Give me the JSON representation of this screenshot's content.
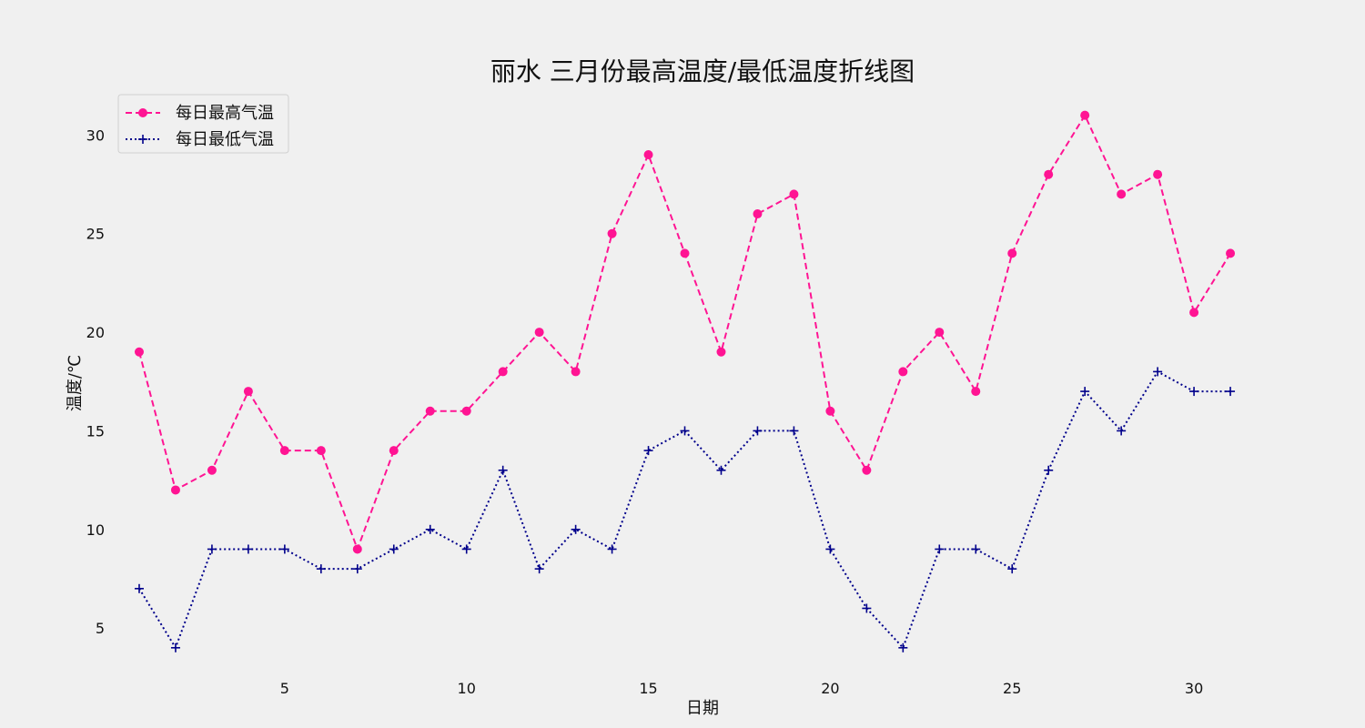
{
  "chart_data": {
    "type": "line",
    "title": "丽水 三月份最高温度/最低温度折线图",
    "xlabel": "日期",
    "ylabel": "温度/℃",
    "x": [
      1,
      2,
      3,
      4,
      5,
      6,
      7,
      8,
      9,
      10,
      11,
      12,
      13,
      14,
      15,
      16,
      17,
      18,
      19,
      20,
      21,
      22,
      23,
      24,
      25,
      26,
      27,
      28,
      29,
      30,
      31
    ],
    "xticks": [
      5,
      10,
      15,
      20,
      25,
      30
    ],
    "yticks": [
      5,
      10,
      15,
      20,
      25,
      30
    ],
    "xlim": [
      0.3,
      32.7
    ],
    "ylim": [
      2.7,
      32.0
    ],
    "grid": false,
    "legend_position": "top-left",
    "series": [
      {
        "name": "每日最高气温",
        "color": "#ff1493",
        "linestyle": "dashed",
        "marker": "circle",
        "values": [
          19,
          12,
          13,
          17,
          14,
          14,
          9,
          14,
          16,
          16,
          18,
          20,
          18,
          25,
          29,
          24,
          19,
          26,
          27,
          16,
          13,
          18,
          20,
          17,
          24,
          28,
          31,
          27,
          28,
          21,
          24
        ]
      },
      {
        "name": "每日最低气温",
        "color": "#00008b",
        "linestyle": "dotted",
        "marker": "plus",
        "values": [
          7,
          4,
          9,
          9,
          9,
          8,
          8,
          9,
          10,
          9,
          13,
          8,
          10,
          9,
          14,
          15,
          13,
          15,
          15,
          9,
          6,
          4,
          9,
          9,
          8,
          13,
          17,
          15,
          18,
          17,
          17
        ]
      }
    ]
  }
}
